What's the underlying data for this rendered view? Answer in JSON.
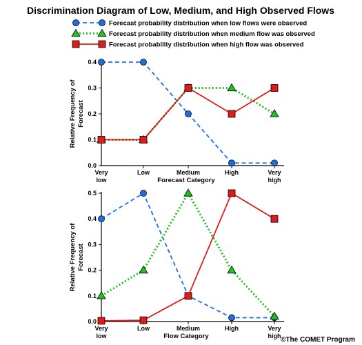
{
  "title": "Discrimination Diagram of Low, Medium, and High Observed Flows",
  "credit": "©The COMET Program",
  "legend": [
    {
      "label": "Forecast probability distribution when low flows were observed",
      "color": "#1f6fe0",
      "marker": "circle",
      "dash": "dashed"
    },
    {
      "label": "Forecast probability distribution when medium flow was observed",
      "color": "#22c21d",
      "marker": "triangle",
      "dash": "dotted"
    },
    {
      "label": "Forecast probability distribution when high flow was observed",
      "color": "#e01b1b",
      "marker": "square",
      "dash": "solid"
    }
  ],
  "chart_data": [
    {
      "type": "line",
      "categories": [
        "Very low",
        "Low",
        "Medium",
        "High",
        "Very high"
      ],
      "xlabel": "Forecast Category",
      "ylabel": "Relative Frequency of Forecast",
      "ylim": [
        0,
        0.4
      ],
      "yticks": [
        "0.0",
        "0.1",
        "0.2",
        "0.3",
        "0.4"
      ],
      "grid": false,
      "series": [
        {
          "values": [
            0.4,
            0.4,
            0.2,
            0.01,
            0.01
          ]
        },
        {
          "values": [
            0.1,
            0.1,
            0.3,
            0.3,
            0.2
          ]
        },
        {
          "values": [
            0.1,
            0.1,
            0.3,
            0.2,
            0.3
          ]
        }
      ]
    },
    {
      "type": "line",
      "categories": [
        "Very low",
        "Low",
        "Medium",
        "High",
        "Very high"
      ],
      "xlabel": "Flow Category",
      "ylabel": "Relative Frequency of Forecast",
      "ylim": [
        0,
        0.5
      ],
      "yticks": [
        "0.0",
        "0.1",
        "0.2",
        "0.3",
        "0.4",
        "0.5"
      ],
      "grid": false,
      "series": [
        {
          "values": [
            0.4,
            0.5,
            0.1,
            0.015,
            0.015
          ]
        },
        {
          "values": [
            0.1,
            0.2,
            0.5,
            0.2,
            0.02
          ]
        },
        {
          "values": [
            0.003,
            0.005,
            0.1,
            0.5,
            0.4
          ]
        }
      ]
    }
  ]
}
